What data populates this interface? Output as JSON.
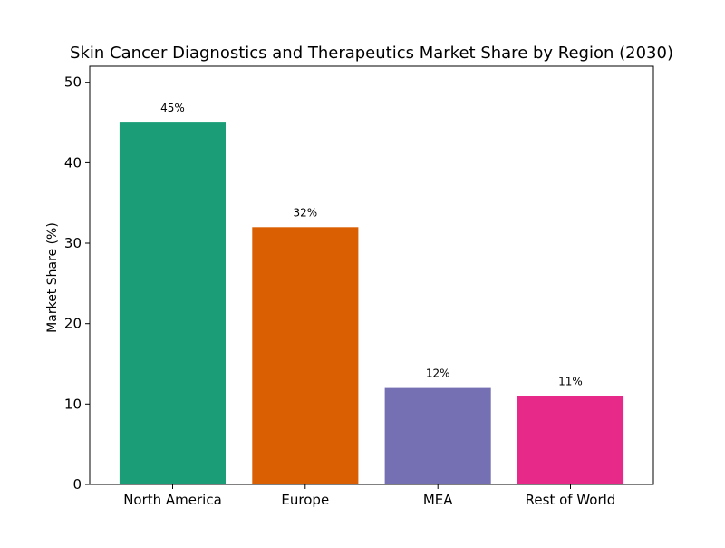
{
  "chart_data": {
    "type": "bar",
    "title": "Skin Cancer Diagnostics and Therapeutics Market Share by Region (2030)",
    "xlabel": "",
    "ylabel": "Market Share (%)",
    "categories": [
      "North America",
      "Europe",
      "MEA",
      "Rest of World"
    ],
    "values": [
      45,
      32,
      12,
      11
    ],
    "data_labels": [
      "45%",
      "32%",
      "12%",
      "11%"
    ],
    "colors": [
      "#1b9e77",
      "#d95f02",
      "#7570b3",
      "#e7298a"
    ],
    "ylim": [
      0,
      52
    ],
    "yticks": [
      0,
      10,
      20,
      30,
      40,
      50
    ],
    "grid": false,
    "legend": "none"
  }
}
